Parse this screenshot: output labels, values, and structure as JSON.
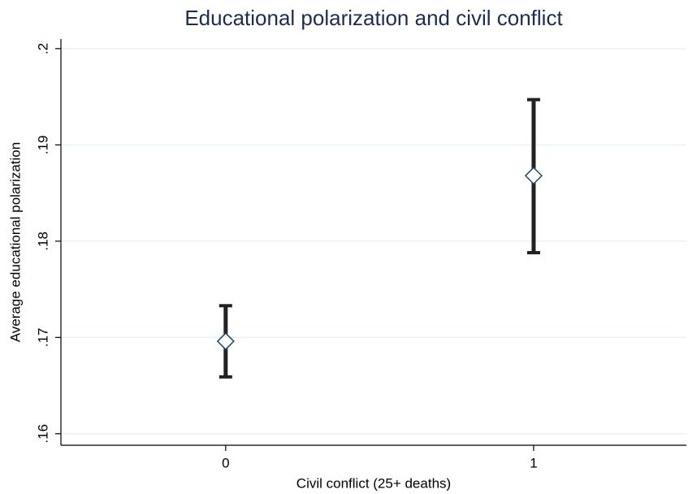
{
  "chart_data": {
    "type": "errorbar",
    "title": "Educational polarization and civil conflict",
    "x_label": "Civil conflict (25+ deaths)",
    "y_label": "Average educational polarization",
    "x": [
      0,
      1
    ],
    "values": [
      0.1696,
      0.1868
    ],
    "lower": [
      0.1659,
      0.1788
    ],
    "upper": [
      0.1733,
      0.1947
    ],
    "color": "#1a476f",
    "bar_color": "#222222",
    "xlim": [
      -0.535,
      1.496
    ],
    "ylim": [
      0.1588,
      0.201
    ],
    "xticks": [
      0,
      1
    ],
    "yticks": [
      {
        "value": 0.16,
        "label": ".16"
      },
      {
        "value": 0.17,
        "label": ".17"
      },
      {
        "value": 0.18,
        "label": ".18"
      },
      {
        "value": 0.19,
        "label": ".19"
      },
      {
        "value": 0.2,
        "label": ".2"
      }
    ],
    "grid": true
  }
}
